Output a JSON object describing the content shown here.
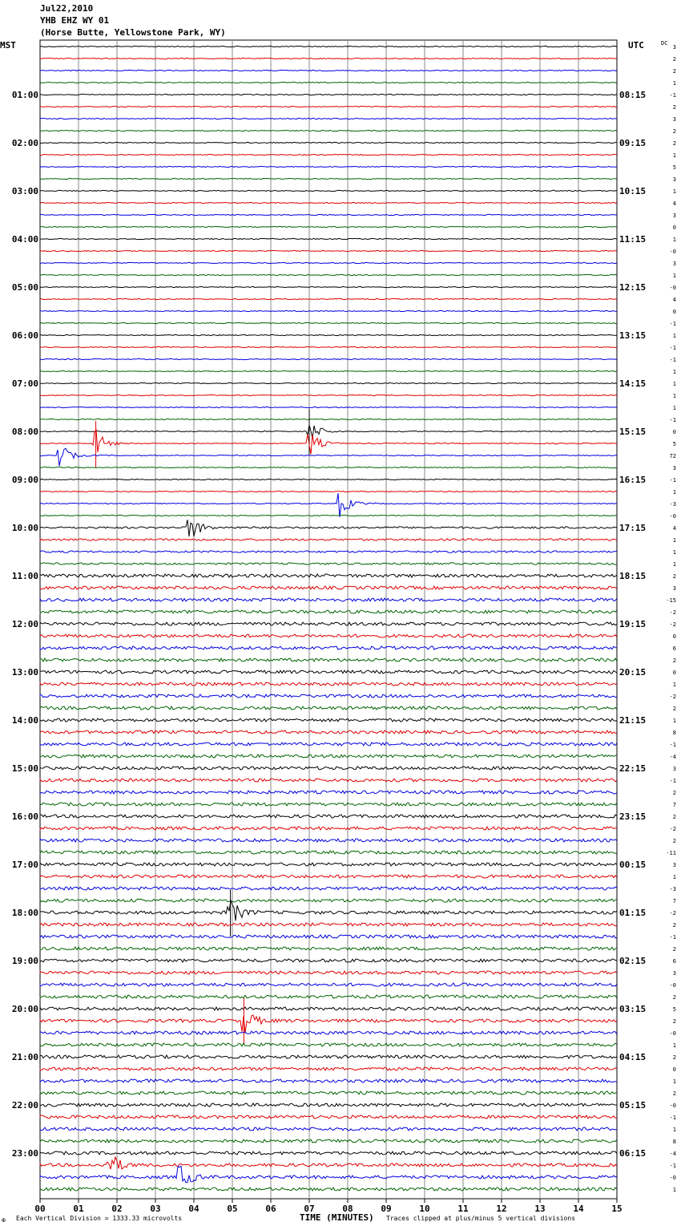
{
  "header": {
    "date": "Jul22,2010",
    "station": "YHB EHZ WY 01",
    "location": "(Horse Butte, Yellowstone Park, WY)"
  },
  "footer": {
    "mark": "✠",
    "scale_note": "Each Vertical Division = 1333.33 microvolts",
    "clip_note": "Traces clipped at plus/minus 5 vertical divisions"
  },
  "chart_data": {
    "type": "line",
    "xlabel": "TIME (MINUTES)",
    "x_ticks": [
      "00",
      "01",
      "02",
      "03",
      "04",
      "05",
      "06",
      "07",
      "08",
      "09",
      "10",
      "11",
      "12",
      "13",
      "14",
      "15"
    ],
    "xlim": [
      0,
      15
    ],
    "left_axis_label": "MST",
    "right_axis_label": "UTC",
    "dc_label": "DC",
    "left_hour_labels": [
      "01:00",
      "02:00",
      "03:00",
      "04:00",
      "05:00",
      "06:00",
      "07:00",
      "08:00",
      "09:00",
      "10:00",
      "11:00",
      "12:00",
      "13:00",
      "14:00",
      "15:00",
      "16:00",
      "17:00",
      "18:00",
      "19:00",
      "20:00",
      "21:00",
      "22:00",
      "23:00"
    ],
    "right_hour_labels": [
      "08:15",
      "09:15",
      "10:15",
      "11:15",
      "12:15",
      "13:15",
      "14:15",
      "15:15",
      "16:15",
      "17:15",
      "18:15",
      "19:15",
      "20:15",
      "21:15",
      "22:15",
      "23:15",
      "00:15",
      "01:15",
      "02:15",
      "03:15",
      "04:15",
      "05:15",
      "06:15"
    ],
    "trace_colors": [
      "#000000",
      "#e00000",
      "#0000e0",
      "#006400"
    ],
    "dc_offsets": [
      "3",
      "2",
      "2",
      "1",
      "-1",
      "2",
      "3",
      "2",
      "2",
      "1",
      "5",
      "3",
      "1",
      "4",
      "3",
      "0",
      "1",
      "-0",
      "3",
      "1",
      "-0",
      "4",
      "0",
      "-1",
      "1",
      "-1",
      "-1",
      "1",
      "1",
      "1",
      "1",
      "-1",
      "0",
      "5",
      "72",
      "3",
      "-1",
      "1",
      "-3",
      "-0",
      "4",
      "1",
      "1",
      "1",
      "2",
      "3",
      "-15",
      "-2",
      "-2",
      "0",
      "6",
      "2",
      "0",
      "1",
      "-2",
      "2",
      "1",
      "8",
      "-1",
      "-4",
      "3",
      "-1",
      "2",
      "7",
      "2",
      "-2",
      "2",
      "-11",
      "3",
      "1",
      "-3",
      "7",
      "-2",
      "2",
      "-1",
      "2",
      "6",
      "3",
      "-0",
      "2",
      "5",
      "2",
      "-0",
      "1",
      "2",
      "0",
      "1",
      "2",
      "-0",
      "-1",
      "1",
      "8",
      "-4",
      "-1",
      "-0",
      "1"
    ],
    "num_traces": 96,
    "trace_span_minutes": 15,
    "events": [
      {
        "trace": 32,
        "minute": 7.0,
        "note": "large spike"
      },
      {
        "trace": 33,
        "minute": 7.0,
        "note": "large event"
      },
      {
        "trace": 34,
        "minute": 0.5,
        "note": "event"
      },
      {
        "trace": 33,
        "minute": 1.45,
        "note": "spike"
      },
      {
        "trace": 38,
        "minute": 7.8,
        "note": "event"
      },
      {
        "trace": 40,
        "minute": 3.9,
        "note": "event"
      },
      {
        "trace": 72,
        "minute": 4.95,
        "note": "spike"
      },
      {
        "trace": 81,
        "minute": 5.3,
        "note": "spike"
      },
      {
        "trace": 93,
        "minute": 1.8,
        "note": "event"
      },
      {
        "trace": 94,
        "minute": 3.65,
        "note": "event"
      }
    ]
  }
}
